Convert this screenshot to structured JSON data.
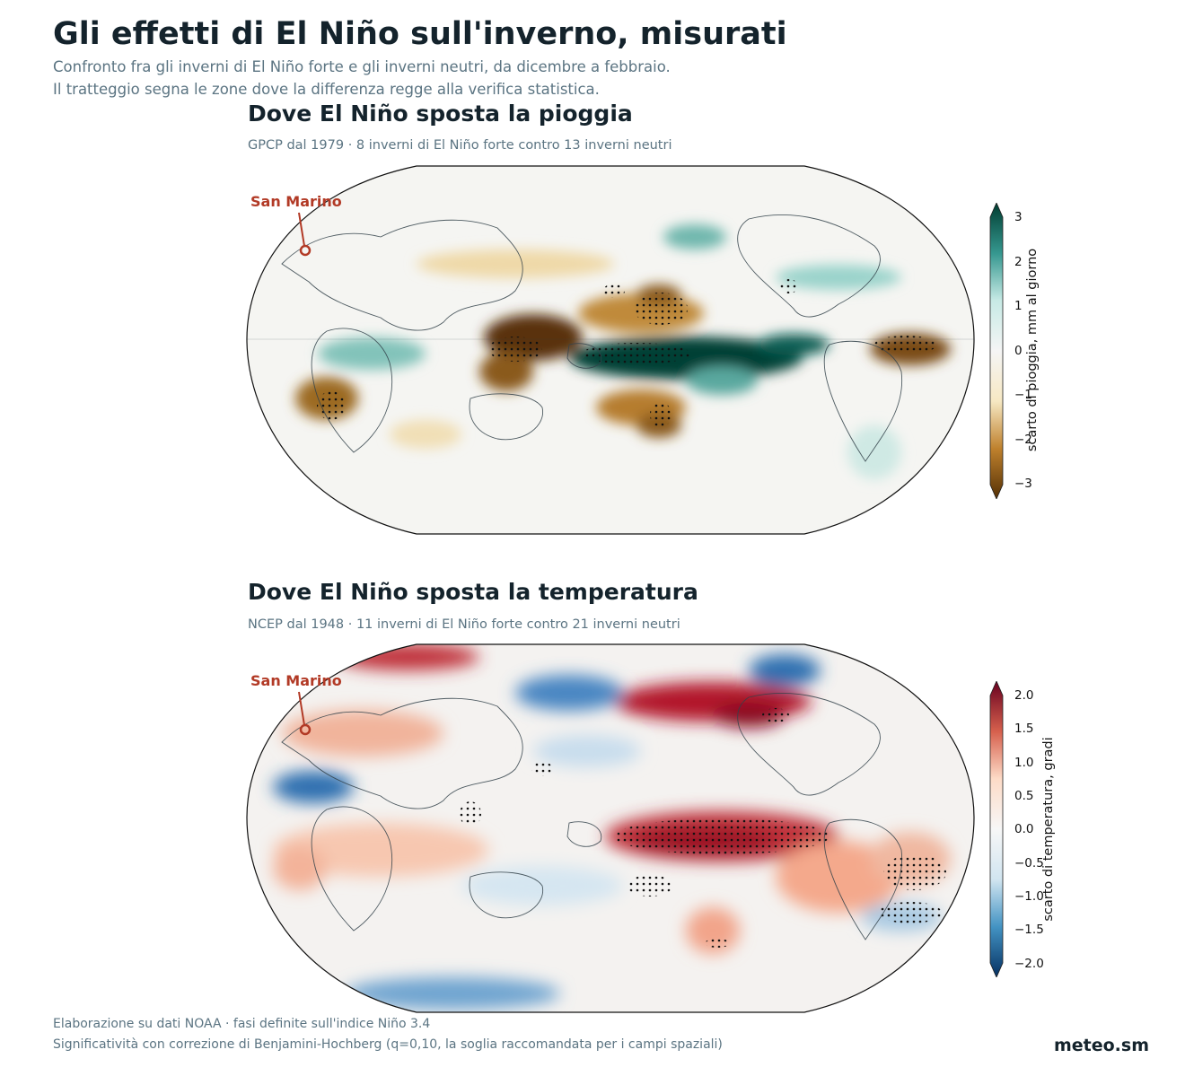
{
  "header": {
    "title": "Gli effetti di El Niño sull'inverno, misurati",
    "subtitle_line1": "Confronto fra gli inverni di El Niño forte e gli inverni neutri, da dicembre a febbraio.",
    "subtitle_line2": "Il tratteggio segna le zone dove la differenza regge alla verifica statistica."
  },
  "precip_panel": {
    "title": "Dove El Niño sposta la pioggia",
    "subtitle": "GPCP dal 1979 · 8 inverni di El Niño forte contro 13 inverni neutri",
    "marker_label": "San Marino",
    "colorbar": {
      "label": "scarto di pioggia, mm al giorno",
      "ticks": [
        "3",
        "2",
        "1",
        "0",
        "−1",
        "−2",
        "−3"
      ],
      "colors": [
        "#004236",
        "#35978f",
        "#c7eae5",
        "#f5f5f5",
        "#f6e8c3",
        "#bf812d",
        "#543005"
      ]
    }
  },
  "temp_panel": {
    "title": "Dove El Niño sposta la temperatura",
    "subtitle": "NCEP dal 1948 · 11 inverni di El Niño forte contro 21 inverni neutri",
    "marker_label": "San Marino",
    "colorbar": {
      "label": "scarto di temperatura, gradi",
      "ticks": [
        "2.0",
        "1.5",
        "1.0",
        "0.5",
        "0.0",
        "−0.5",
        "−1.0",
        "−1.5",
        "−2.0"
      ],
      "colors": [
        "#67001f",
        "#d6604d",
        "#fddbc7",
        "#f7f7f7",
        "#d1e5f0",
        "#4393c3",
        "#053061"
      ]
    }
  },
  "footer": {
    "line1": "Elaborazione su dati NOAA · fasi definite sull'indice Niño 3.4",
    "line2": "Significatività con correzione di Benjamini-Hochberg (q=0,10, la soglia raccomandata per i campi spaziali)",
    "brand": "meteo.sm"
  },
  "colors": {
    "accent_marker": "#b23a26",
    "title": "#14232c",
    "muted": "#5b7482"
  }
}
